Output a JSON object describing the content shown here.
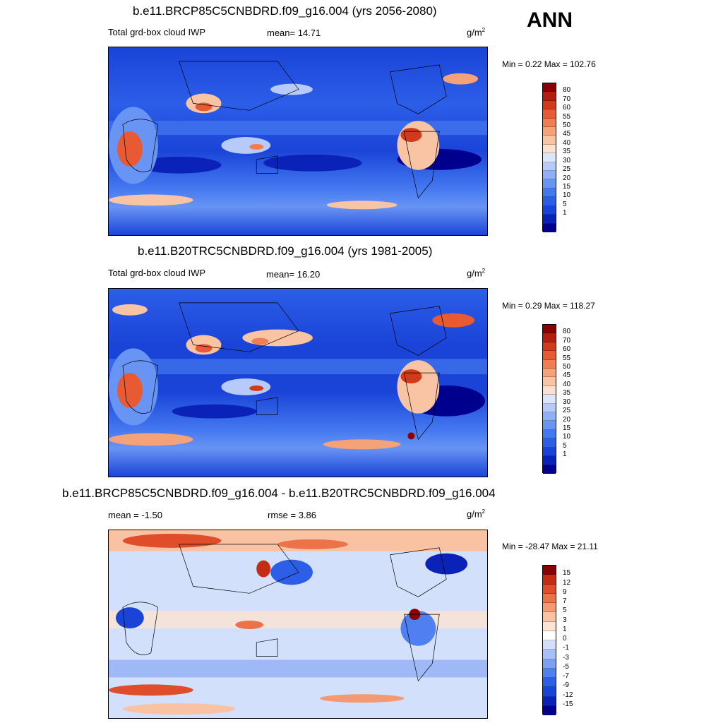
{
  "season": "ANN",
  "colors": {
    "abs_scale": [
      "#00008f",
      "#0a22b8",
      "#1a44d8",
      "#2c5ee8",
      "#4478f0",
      "#6894f4",
      "#8fb0f7",
      "#b6cbf9",
      "#dbe6fb",
      "#fbe2cf",
      "#f9c4a4",
      "#f5a279",
      "#ef7e52",
      "#e75a33",
      "#d23a1c",
      "#b51e0e",
      "#8a0000"
    ],
    "diff_scale": [
      "#00008f",
      "#0a22b8",
      "#1a44d8",
      "#2c5ee8",
      "#4f7ff0",
      "#7d9ff4",
      "#a8c0f8",
      "#d2e0fb",
      "#ffffff",
      "#fde3d2",
      "#f9c2a2",
      "#f49a72",
      "#ec724a",
      "#df4d2a",
      "#c42c14",
      "#8a0000"
    ]
  },
  "panels": [
    {
      "title": "b.e11.BRCP85C5CNBDRD.f09_g16.004 (yrs 2056-2080)",
      "left_label": "Total grd-box cloud IWP",
      "mid_label": "mean=  14.71",
      "units": "g/m",
      "units_sup": "2",
      "minmax": "Min =   0.22 Max = 102.76",
      "ticks": [
        "80",
        "70",
        "60",
        "55",
        "50",
        "45",
        "40",
        "35",
        "30",
        "25",
        "20",
        "15",
        "10",
        "5",
        "1"
      ]
    },
    {
      "title": "b.e11.B20TRC5CNBDRD.f09_g16.004 (yrs 1981-2005)",
      "left_label": "Total grd-box cloud IWP",
      "mid_label": "mean=  16.20",
      "units": "g/m",
      "units_sup": "2",
      "minmax": "Min =   0.29 Max = 118.27",
      "ticks": [
        "80",
        "70",
        "60",
        "55",
        "50",
        "45",
        "40",
        "35",
        "30",
        "25",
        "20",
        "15",
        "10",
        "5",
        "1"
      ]
    },
    {
      "title": "b.e11.BRCP85C5CNBDRD.f09_g16.004 - b.e11.B20TRC5CNBDRD.f09_g16.004",
      "left_label": "mean =  -1.50",
      "mid_label": "rmse =   3.86",
      "units": "g/m",
      "units_sup": "2",
      "minmax": "Min = -28.47 Max =  21.11",
      "ticks": [
        "15",
        "12",
        "9",
        "7",
        "5",
        "3",
        "1",
        "0",
        "-1",
        "-3",
        "-5",
        "-7",
        "-9",
        "-12",
        "-15"
      ]
    }
  ],
  "chart_data": [
    {
      "type": "heatmap",
      "title": "b.e11.BRCP85C5CNBDRD.f09_g16.004 (yrs 2056-2080)",
      "variable": "Total grd-box cloud IWP",
      "units": "g/m^2",
      "mean": 14.71,
      "min": 0.22,
      "max": 102.76,
      "contour_levels": [
        1,
        5,
        10,
        15,
        20,
        25,
        30,
        35,
        40,
        45,
        50,
        55,
        60,
        70,
        80
      ]
    },
    {
      "type": "heatmap",
      "title": "b.e11.B20TRC5CNBDRD.f09_g16.004 (yrs 1981-2005)",
      "variable": "Total grd-box cloud IWP",
      "units": "g/m^2",
      "mean": 16.2,
      "min": 0.29,
      "max": 118.27,
      "contour_levels": [
        1,
        5,
        10,
        15,
        20,
        25,
        30,
        35,
        40,
        45,
        50,
        55,
        60,
        70,
        80
      ]
    },
    {
      "type": "heatmap",
      "title": "b.e11.BRCP85C5CNBDRD.f09_g16.004 - b.e11.B20TRC5CNBDRD.f09_g16.004",
      "units": "g/m^2",
      "mean": -1.5,
      "rmse": 3.86,
      "min": -28.47,
      "max": 21.11,
      "contour_levels": [
        -15,
        -12,
        -9,
        -7,
        -5,
        -3,
        -1,
        0,
        1,
        3,
        5,
        7,
        9,
        12,
        15
      ]
    }
  ]
}
